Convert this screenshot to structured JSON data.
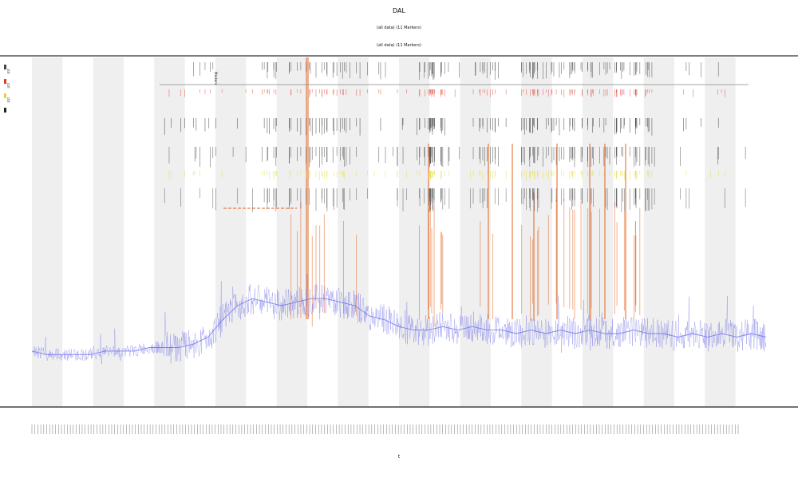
{
  "chart_data": {
    "type": "line",
    "title": "DAL",
    "subtitle_lines": [
      "(all data)  (11 Markers)",
      "(all data)  (11 Markers)"
    ],
    "xlabel": "t",
    "ylabel": "",
    "grid": true,
    "legend_position": "top-left",
    "legend": [
      {
        "name": "ctrl",
        "color": "#444444"
      },
      {
        "name": "ctrl",
        "color": "#e03c2f"
      },
      {
        "name": "ctrl",
        "color": "#e6d23a"
      },
      {
        "name": "",
        "color": "#222222"
      }
    ],
    "marker_label": "Markers",
    "ylim": [
      0,
      100
    ],
    "xlim": [
      0,
      100
    ],
    "series": [
      {
        "name": "",
        "color": "#6a6ae8",
        "x": [
          0,
          2,
          4,
          6,
          8,
          10,
          12,
          14,
          16,
          18,
          20,
          22,
          24,
          26,
          28,
          30,
          32,
          34,
          36,
          38,
          40,
          42,
          44,
          46,
          48,
          50,
          52,
          54,
          56,
          58,
          60,
          62,
          64,
          66,
          68,
          70,
          72,
          74,
          76,
          78,
          80,
          82,
          84,
          86,
          88,
          90,
          92,
          94,
          96,
          98,
          100
        ],
        "y": [
          16,
          15,
          15,
          15,
          15,
          16,
          16,
          16,
          17,
          17,
          17,
          18,
          20,
          25,
          29,
          31,
          30,
          29,
          30,
          31,
          31,
          30,
          29,
          26,
          25,
          23,
          22,
          22,
          23,
          22,
          23,
          22,
          22,
          21,
          22,
          21,
          22,
          21,
          22,
          21,
          21,
          22,
          21,
          21,
          20,
          21,
          20,
          21,
          20,
          21,
          20
        ]
      }
    ],
    "alternating_bands": 24,
    "x_tick_count": 240,
    "colors": {
      "grid_band": "#efefef",
      "line": "#6a6ae8",
      "event_orange": "#e2621b",
      "event_yellow": "#e8df43",
      "tick_black": "#222222",
      "tick_red": "#e03c2f"
    }
  }
}
